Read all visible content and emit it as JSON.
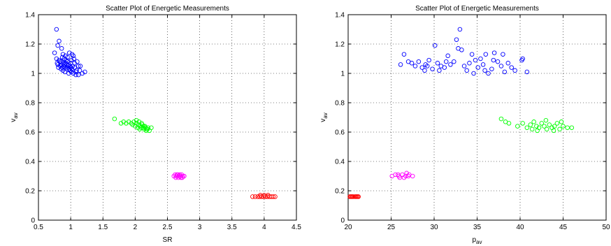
{
  "chart_data": [
    {
      "type": "scatter",
      "title": "Scatter Plot of Energetic Measurements",
      "xlabel": "SR",
      "ylabel": "v",
      "ylabel_sub": "av",
      "xlim": [
        0.5,
        4.5
      ],
      "ylim": [
        0,
        1.4
      ],
      "xticks": [
        0.5,
        1,
        1.5,
        2,
        2.5,
        3,
        3.5,
        4,
        4.5
      ],
      "yticks": [
        0,
        0.2,
        0.4,
        0.6,
        0.8,
        1,
        1.2,
        1.4
      ],
      "grid": true,
      "legend": "none",
      "marker": "circle-open",
      "series": [
        {
          "color": "#0000ff",
          "points": [
            [
              0.78,
              1.3
            ],
            [
              0.82,
              1.22
            ],
            [
              0.8,
              1.19
            ],
            [
              0.86,
              1.17
            ],
            [
              0.75,
              1.14
            ],
            [
              0.88,
              1.13
            ],
            [
              0.92,
              1.12
            ],
            [
              0.98,
              1.14
            ],
            [
              1.02,
              1.13
            ],
            [
              1.05,
              1.1
            ],
            [
              0.78,
              1.1
            ],
            [
              0.82,
              1.09
            ],
            [
              0.85,
              1.08
            ],
            [
              0.88,
              1.07
            ],
            [
              0.9,
              1.06
            ],
            [
              0.93,
              1.09
            ],
            [
              0.95,
              1.08
            ],
            [
              0.97,
              1.06
            ],
            [
              1.0,
              1.07
            ],
            [
              1.03,
              1.05
            ],
            [
              0.8,
              1.06
            ],
            [
              0.84,
              1.05
            ],
            [
              0.87,
              1.04
            ],
            [
              0.91,
              1.04
            ],
            [
              0.94,
              1.03
            ],
            [
              0.96,
              1.05
            ],
            [
              0.99,
              1.02
            ],
            [
              1.02,
              1.03
            ],
            [
              1.06,
              1.04
            ],
            [
              1.09,
              1.02
            ],
            [
              0.83,
              1.08
            ],
            [
              0.86,
              1.06
            ],
            [
              0.89,
              1.05
            ],
            [
              0.92,
              1.07
            ],
            [
              0.95,
              1.04
            ],
            [
              0.98,
              1.03
            ],
            [
              1.01,
              1.01
            ],
            [
              1.04,
              1.0
            ],
            [
              1.08,
              1.01
            ],
            [
              1.12,
              1.05
            ],
            [
              0.79,
              1.07
            ],
            [
              0.81,
              1.04
            ],
            [
              0.85,
              1.03
            ],
            [
              0.88,
              1.02
            ],
            [
              0.91,
              1.01
            ],
            [
              0.94,
              1.06
            ],
            [
              0.97,
              1.0
            ],
            [
              1.0,
              1.04
            ],
            [
              1.06,
              1.07
            ],
            [
              1.1,
              1.08
            ],
            [
              1.14,
              1.02
            ],
            [
              1.18,
              1.0
            ],
            [
              1.22,
              1.01
            ],
            [
              1.08,
              0.99
            ],
            [
              1.15,
              1.05
            ],
            [
              0.9,
              1.1
            ],
            [
              0.95,
              1.11
            ],
            [
              1.01,
              1.09
            ],
            [
              1.04,
              1.12
            ],
            [
              0.87,
              1.11
            ],
            [
              1.12,
              0.99
            ],
            [
              0.99,
              1.05
            ]
          ]
        },
        {
          "color": "#00ff00",
          "points": [
            [
              1.68,
              0.69
            ],
            [
              1.78,
              0.66
            ],
            [
              1.82,
              0.67
            ],
            [
              1.86,
              0.66
            ],
            [
              1.9,
              0.67
            ],
            [
              1.94,
              0.66
            ],
            [
              1.98,
              0.67
            ],
            [
              2.02,
              0.68
            ],
            [
              2.05,
              0.65
            ],
            [
              2.08,
              0.64
            ],
            [
              2.1,
              0.66
            ],
            [
              2.12,
              0.63
            ],
            [
              2.15,
              0.64
            ],
            [
              2.18,
              0.62
            ],
            [
              2.2,
              0.63
            ],
            [
              2.22,
              0.61
            ],
            [
              2.25,
              0.63
            ],
            [
              2.0,
              0.64
            ],
            [
              2.04,
              0.63
            ],
            [
              2.07,
              0.62
            ],
            [
              2.11,
              0.65
            ],
            [
              2.14,
              0.62
            ],
            [
              2.17,
              0.61
            ],
            [
              1.96,
              0.65
            ],
            [
              2.02,
              0.66
            ],
            [
              2.06,
              0.67
            ],
            [
              2.09,
              0.63
            ],
            [
              2.13,
              0.64
            ],
            [
              2.16,
              0.63
            ],
            [
              2.19,
              0.62
            ]
          ]
        },
        {
          "color": "#ff00ff",
          "points": [
            [
              2.6,
              0.3
            ],
            [
              2.62,
              0.31
            ],
            [
              2.64,
              0.3
            ],
            [
              2.66,
              0.31
            ],
            [
              2.68,
              0.3
            ],
            [
              2.7,
              0.3
            ],
            [
              2.72,
              0.31
            ],
            [
              2.74,
              0.3
            ],
            [
              2.76,
              0.3
            ],
            [
              2.63,
              0.29
            ],
            [
              2.67,
              0.29
            ],
            [
              2.71,
              0.29
            ],
            [
              2.65,
              0.31
            ],
            [
              2.69,
              0.31
            ],
            [
              2.73,
              0.29
            ]
          ]
        },
        {
          "color": "#ff0000",
          "points": [
            [
              3.82,
              0.16
            ],
            [
              3.86,
              0.16
            ],
            [
              3.9,
              0.16
            ],
            [
              3.93,
              0.16
            ],
            [
              3.96,
              0.16
            ],
            [
              3.99,
              0.16
            ],
            [
              4.02,
              0.16
            ],
            [
              4.05,
              0.16
            ],
            [
              4.08,
              0.16
            ],
            [
              4.11,
              0.16
            ],
            [
              4.14,
              0.16
            ],
            [
              4.17,
              0.16
            ],
            [
              3.94,
              0.17
            ],
            [
              4.0,
              0.17
            ],
            [
              4.06,
              0.17
            ]
          ]
        }
      ]
    },
    {
      "type": "scatter",
      "title": "Scatter Plot of Energetic Measurements",
      "xlabel": "p",
      "xlabel_sub": "av",
      "ylabel": "v",
      "ylabel_sub": "av",
      "xlim": [
        20,
        50
      ],
      "ylim": [
        0,
        1.4
      ],
      "xticks": [
        20,
        25,
        30,
        35,
        40,
        45,
        50
      ],
      "yticks": [
        0,
        0.2,
        0.4,
        0.6,
        0.8,
        1,
        1.2,
        1.4
      ],
      "grid": true,
      "legend": "none",
      "marker": "circle-open",
      "series": [
        {
          "color": "#0000ff",
          "points": [
            [
              26.1,
              1.06
            ],
            [
              26.5,
              1.13
            ],
            [
              27.0,
              1.08
            ],
            [
              27.4,
              1.07
            ],
            [
              27.8,
              1.05
            ],
            [
              28.2,
              1.08
            ],
            [
              28.6,
              1.04
            ],
            [
              29.0,
              1.06
            ],
            [
              29.4,
              1.09
            ],
            [
              29.8,
              1.03
            ],
            [
              30.1,
              1.19
            ],
            [
              30.4,
              1.07
            ],
            [
              30.8,
              1.05
            ],
            [
              31.2,
              1.04
            ],
            [
              31.6,
              1.12
            ],
            [
              31.9,
              1.06
            ],
            [
              32.3,
              1.08
            ],
            [
              32.6,
              1.23
            ],
            [
              32.8,
              1.17
            ],
            [
              33.0,
              1.3
            ],
            [
              33.2,
              1.16
            ],
            [
              33.5,
              1.05
            ],
            [
              33.8,
              1.02
            ],
            [
              34.1,
              1.07
            ],
            [
              34.4,
              1.13
            ],
            [
              34.8,
              1.09
            ],
            [
              35.1,
              1.04
            ],
            [
              35.4,
              1.1
            ],
            [
              35.7,
              1.06
            ],
            [
              36.0,
              1.13
            ],
            [
              36.3,
              1.0
            ],
            [
              36.7,
              1.03
            ],
            [
              37.0,
              1.14
            ],
            [
              37.4,
              1.08
            ],
            [
              37.8,
              1.05
            ],
            [
              38.2,
              1.01
            ],
            [
              38.6,
              1.07
            ],
            [
              39.0,
              1.04
            ],
            [
              39.4,
              1.02
            ],
            [
              40.2,
              1.09
            ],
            [
              40.8,
              1.01
            ],
            [
              40.3,
              1.1
            ],
            [
              28.9,
              1.02
            ],
            [
              30.6,
              1.02
            ],
            [
              34.6,
              1.0
            ],
            [
              36.9,
              1.09
            ],
            [
              35.9,
              1.02
            ],
            [
              31.4,
              1.08
            ],
            [
              29.2,
              1.05
            ],
            [
              38.0,
              1.13
            ]
          ]
        },
        {
          "color": "#00ff00",
          "points": [
            [
              37.8,
              0.69
            ],
            [
              38.3,
              0.67
            ],
            [
              38.7,
              0.66
            ],
            [
              39.7,
              0.64
            ],
            [
              40.3,
              0.66
            ],
            [
              40.8,
              0.63
            ],
            [
              41.2,
              0.65
            ],
            [
              41.6,
              0.67
            ],
            [
              41.9,
              0.64
            ],
            [
              42.2,
              0.63
            ],
            [
              42.5,
              0.66
            ],
            [
              42.8,
              0.64
            ],
            [
              43.1,
              0.62
            ],
            [
              43.4,
              0.65
            ],
            [
              43.7,
              0.63
            ],
            [
              44.0,
              0.64
            ],
            [
              44.3,
              0.66
            ],
            [
              44.6,
              0.62
            ],
            [
              45.0,
              0.64
            ],
            [
              45.5,
              0.63
            ],
            [
              46.0,
              0.63
            ],
            [
              42.0,
              0.61
            ],
            [
              43.0,
              0.68
            ],
            [
              44.8,
              0.67
            ],
            [
              41.4,
              0.62
            ],
            [
              43.9,
              0.61
            ]
          ]
        },
        {
          "color": "#ff00ff",
          "points": [
            [
              25.1,
              0.3
            ],
            [
              25.5,
              0.31
            ],
            [
              25.9,
              0.3
            ],
            [
              26.3,
              0.31
            ],
            [
              26.7,
              0.3
            ],
            [
              27.1,
              0.31
            ],
            [
              27.5,
              0.3
            ],
            [
              26.0,
              0.29
            ],
            [
              26.5,
              0.29
            ],
            [
              25.8,
              0.31
            ],
            [
              27.0,
              0.3
            ],
            [
              26.8,
              0.32
            ]
          ]
        },
        {
          "color": "#ff0000",
          "points": [
            [
              20.2,
              0.16
            ],
            [
              20.4,
              0.16
            ],
            [
              20.6,
              0.16
            ],
            [
              20.8,
              0.16
            ],
            [
              21.0,
              0.16
            ],
            [
              21.2,
              0.16
            ],
            [
              20.5,
              0.16
            ],
            [
              20.9,
              0.16
            ],
            [
              20.3,
              0.16
            ],
            [
              21.1,
              0.16
            ]
          ]
        }
      ]
    }
  ]
}
